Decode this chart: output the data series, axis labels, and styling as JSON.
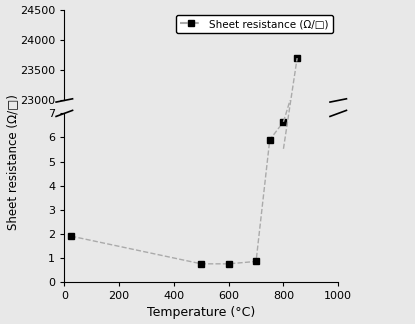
{
  "x": [
    25,
    500,
    600,
    700,
    750,
    800,
    850
  ],
  "y": [
    1.9,
    0.75,
    0.75,
    0.85,
    5.9,
    6.65,
    23700
  ],
  "xlabel": "Temperature (°C)",
  "ylabel": "Sheet resistance (Ω/□)",
  "legend_label": "Sheet resistance (Ω/□)",
  "xlim": [
    0,
    1000
  ],
  "ylim_low": [
    0,
    7
  ],
  "ylim_high": [
    23000,
    24500
  ],
  "yticks_low": [
    0,
    1,
    2,
    3,
    4,
    5,
    6,
    7
  ],
  "yticks_high": [
    23000,
    23500,
    24000,
    24500
  ],
  "xticks": [
    0,
    200,
    400,
    600,
    800,
    1000
  ],
  "line_color": "#aaaaaa",
  "marker_color": "black",
  "marker": "s",
  "line_style": "--",
  "bg_color": "#e8e8e8",
  "title": ""
}
